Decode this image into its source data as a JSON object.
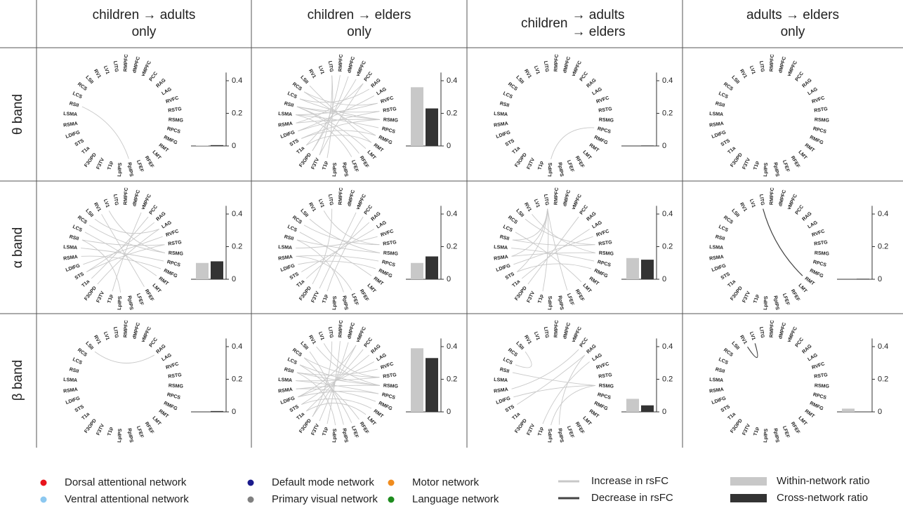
{
  "columns": [
    [
      "children → adults",
      "only"
    ],
    [
      "children → elders",
      "only"
    ],
    [
      "children",
      "→ adults",
      "→ elders"
    ],
    [
      "adults → elders",
      "only"
    ]
  ],
  "rows": [
    "θ band",
    "α band",
    "β band"
  ],
  "networks": [
    {
      "label": "Dorsal attentional network",
      "color": "#e8141c"
    },
    {
      "label": "Ventral attentional network",
      "color": "#8cc8f0"
    },
    {
      "label": "Default mode network",
      "color": "#1a1a8c"
    },
    {
      "label": "Primary visual network",
      "color": "#808080"
    },
    {
      "label": "Motor network",
      "color": "#f08c1e"
    },
    {
      "label": "Language network",
      "color": "#1e8c1e"
    }
  ],
  "nodes": [
    {
      "label": "LITG",
      "network": 2
    },
    {
      "label": "RMPFC",
      "network": 2
    },
    {
      "label": "dMPFC",
      "network": 2
    },
    {
      "label": "vMPFC",
      "network": 2
    },
    {
      "label": "PCC",
      "network": 2
    },
    {
      "label": "RAG",
      "network": 2
    },
    {
      "label": "LAG",
      "network": 2
    },
    {
      "label": "RVFC",
      "network": 1
    },
    {
      "label": "RSTG",
      "network": 1
    },
    {
      "label": "RSMG",
      "network": 1
    },
    {
      "label": "RPCS",
      "network": 1
    },
    {
      "label": "RMFG",
      "network": 1
    },
    {
      "label": "RMT",
      "network": 0
    },
    {
      "label": "LMT",
      "network": 0
    },
    {
      "label": "RFEF",
      "network": 0
    },
    {
      "label": "LFEF",
      "network": 0
    },
    {
      "label": "RpIPS",
      "network": 0
    },
    {
      "label": "LpIPS",
      "network": 0
    },
    {
      "label": "T1p",
      "network": 5
    },
    {
      "label": "F3TV",
      "network": 5
    },
    {
      "label": "F3OPD",
      "network": 5
    },
    {
      "label": "T1a",
      "network": 5
    },
    {
      "label": "STS",
      "network": 5
    },
    {
      "label": "LDIFG",
      "network": 5
    },
    {
      "label": "RSMA",
      "network": 4
    },
    {
      "label": "LSMA",
      "network": 4
    },
    {
      "label": "RSII",
      "network": 4
    },
    {
      "label": "LCS",
      "network": 4
    },
    {
      "label": "RCS",
      "network": 4
    },
    {
      "label": "LSII",
      "network": 4
    },
    {
      "label": "RV1",
      "network": 3
    },
    {
      "label": "LV1",
      "network": 3
    }
  ],
  "bar_axis": {
    "ylim": [
      0,
      0.45
    ],
    "yticks": [
      0,
      0.2,
      0.4
    ]
  },
  "lines": [
    {
      "label": "Increase in rsFC",
      "color": "#c8c8c8"
    },
    {
      "label": "Decrease in rsFC",
      "color": "#444444"
    }
  ],
  "bar_types": [
    {
      "label": "Within-network ratio",
      "color": "#c8c8c8"
    },
    {
      "label": "Cross-network ratio",
      "color": "#333333"
    }
  ],
  "cells": [
    [
      {
        "edges": [
          [
            26,
            16
          ]
        ],
        "bars": [
          0.003,
          0.005
        ]
      },
      {
        "edges": [
          [
            26,
            9
          ],
          [
            26,
            8
          ],
          [
            27,
            9
          ],
          [
            25,
            10
          ],
          [
            24,
            9
          ],
          [
            28,
            7
          ],
          [
            23,
            8
          ],
          [
            22,
            11
          ],
          [
            21,
            12
          ],
          [
            26,
            14
          ],
          [
            25,
            15
          ],
          [
            27,
            5
          ],
          [
            24,
            4
          ],
          [
            0,
            19
          ],
          [
            1,
            20
          ],
          [
            3,
            21
          ],
          [
            29,
            12
          ],
          [
            28,
            11
          ],
          [
            23,
            6
          ],
          [
            22,
            9
          ],
          [
            25,
            7
          ],
          [
            20,
            2
          ],
          [
            19,
            4
          ],
          [
            18,
            0
          ],
          [
            26,
            13
          ]
        ],
        "bars": [
          0.36,
          0.23
        ]
      },
      {
        "edges": [
          [
            10,
            17
          ]
        ],
        "bars": [
          0,
          0.003
        ]
      },
      {
        "edges": []
      }
    ],
    [
      {
        "edges": [
          [
            29,
            6
          ],
          [
            28,
            9
          ],
          [
            26,
            8
          ],
          [
            25,
            10
          ],
          [
            24,
            11
          ],
          [
            23,
            7
          ],
          [
            22,
            5
          ],
          [
            21,
            4
          ],
          [
            27,
            12
          ],
          [
            31,
            9
          ],
          [
            30,
            14
          ],
          [
            26,
            17
          ],
          [
            18,
            3
          ],
          [
            20,
            6
          ],
          [
            22,
            8
          ]
        ],
        "bars": [
          0.1,
          0.11
        ]
      },
      {
        "edges": [
          [
            28,
            8
          ],
          [
            26,
            9
          ],
          [
            25,
            7
          ],
          [
            24,
            10
          ],
          [
            23,
            11
          ],
          [
            22,
            6
          ],
          [
            21,
            5
          ],
          [
            27,
            12
          ],
          [
            29,
            9
          ],
          [
            18,
            4
          ],
          [
            19,
            3
          ],
          [
            0,
            20
          ],
          [
            16,
            26
          ],
          [
            15,
            24
          ],
          [
            31,
            8
          ]
        ],
        "bars": [
          0.1,
          0.14
        ]
      },
      {
        "edges": [
          [
            0,
            22
          ],
          [
            0,
            24
          ],
          [
            0,
            18
          ],
          [
            0,
            15
          ],
          [
            30,
            9
          ],
          [
            29,
            8
          ],
          [
            26,
            8
          ],
          [
            25,
            10
          ],
          [
            24,
            9
          ],
          [
            23,
            7
          ],
          [
            22,
            11
          ],
          [
            21,
            6
          ],
          [
            20,
            4
          ],
          [
            27,
            13
          ],
          [
            0,
            26
          ]
        ],
        "bars": [
          0.13,
          0.12
        ]
      },
      {
        "edges": [],
        "decrease_edges": [
          [
            0,
            12
          ]
        ],
        "bars": [
          0,
          0.003
        ]
      }
    ],
    [
      {
        "edges": [
          [
            29,
            5
          ]
        ],
        "bars": [
          0,
          0.005
        ]
      },
      {
        "edges": [
          [
            28,
            8
          ],
          [
            27,
            9
          ],
          [
            26,
            9
          ],
          [
            26,
            7
          ],
          [
            25,
            10
          ],
          [
            25,
            8
          ],
          [
            24,
            11
          ],
          [
            24,
            9
          ],
          [
            23,
            6
          ],
          [
            23,
            10
          ],
          [
            22,
            5
          ],
          [
            22,
            12
          ],
          [
            21,
            4
          ],
          [
            21,
            13
          ],
          [
            20,
            3
          ],
          [
            19,
            2
          ],
          [
            18,
            1
          ],
          [
            27,
            14
          ],
          [
            28,
            15
          ],
          [
            29,
            16
          ],
          [
            26,
            17
          ],
          [
            30,
            9
          ],
          [
            31,
            8
          ],
          [
            0,
            20
          ],
          [
            3,
            23
          ]
        ],
        "bars": [
          0.39,
          0.33
        ]
      },
      {
        "edges": [
          [
            26,
            9
          ],
          [
            29,
            27
          ],
          [
            24,
            4
          ],
          [
            22,
            5
          ],
          [
            18,
            6
          ],
          [
            17,
            9
          ],
          [
            16,
            5
          ],
          [
            23,
            9
          ]
        ],
        "bars": [
          0.08,
          0.04
        ]
      },
      {
        "edges": [],
        "decrease_edges": [
          [
            31,
            30
          ]
        ],
        "bars": [
          0.02,
          0
        ]
      }
    ]
  ]
}
